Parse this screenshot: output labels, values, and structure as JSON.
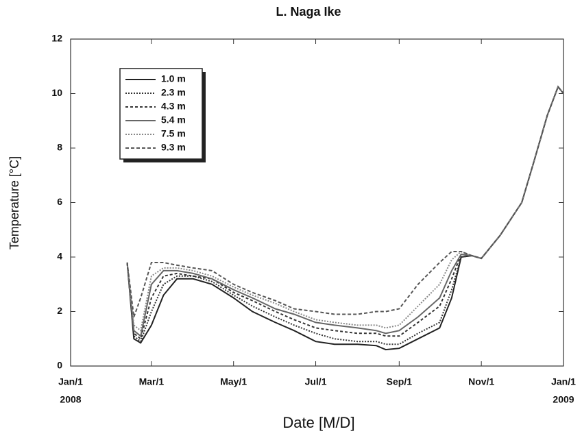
{
  "chart_data": {
    "type": "line",
    "title": "L. Naga Ike",
    "x_label": "Date [M/D]",
    "y_label": "Temperature [°C]",
    "x": [
      "2008-02-12",
      "2008-02-17",
      "2008-02-22",
      "2008-03-01",
      "2008-03-10",
      "2008-03-20",
      "2008-04-01",
      "2008-04-15",
      "2008-05-01",
      "2008-05-15",
      "2008-06-01",
      "2008-06-15",
      "2008-07-01",
      "2008-07-15",
      "2008-08-01",
      "2008-08-15",
      "2008-08-22",
      "2008-09-01",
      "2008-09-15",
      "2008-10-01",
      "2008-10-10",
      "2008-10-17",
      "2008-10-25",
      "2008-11-01",
      "2008-11-15",
      "2008-12-01",
      "2008-12-10",
      "2008-12-20",
      "2008-12-28",
      "2009-01-01"
    ],
    "xlim": [
      "2008-01-01",
      "2009-01-01"
    ],
    "xticks": [
      {
        "value": "2008-01-01",
        "label": "Jan/1"
      },
      {
        "value": "2008-03-01",
        "label": "Mar/1"
      },
      {
        "value": "2008-05-01",
        "label": "May/1"
      },
      {
        "value": "2008-07-01",
        "label": "Jul/1"
      },
      {
        "value": "2008-09-01",
        "label": "Sep/1"
      },
      {
        "value": "2008-11-01",
        "label": "Nov/1"
      },
      {
        "value": "2009-01-01",
        "label": "Jan/1"
      }
    ],
    "x_year_labels": [
      {
        "value": "2008-01-01",
        "label": "2008"
      },
      {
        "value": "2009-01-01",
        "label": "2009"
      }
    ],
    "ylim": [
      0,
      12
    ],
    "yticks": [
      0,
      2,
      4,
      6,
      8,
      10,
      12
    ],
    "legend": "upper left",
    "series": [
      {
        "name": "1.0 m",
        "color": "#222222",
        "dash": "none",
        "values": [
          3.8,
          1.0,
          0.85,
          1.5,
          2.6,
          3.2,
          3.2,
          3.0,
          2.5,
          2.0,
          1.6,
          1.3,
          0.9,
          0.8,
          0.8,
          0.75,
          0.6,
          0.65,
          1.0,
          1.4,
          2.5,
          4.0,
          4.05,
          3.95,
          4.8,
          6.0,
          7.5,
          9.2,
          10.25,
          10.0
        ]
      },
      {
        "name": "2.3 m",
        "color": "#333333",
        "dash": "2 2",
        "values": [
          3.8,
          1.1,
          0.9,
          2.0,
          3.0,
          3.3,
          3.3,
          3.1,
          2.6,
          2.2,
          1.8,
          1.5,
          1.2,
          1.0,
          0.9,
          0.9,
          0.8,
          0.8,
          1.2,
          1.6,
          2.8,
          4.0,
          4.05,
          3.95,
          4.8,
          6.0,
          7.5,
          9.2,
          10.25,
          10.0
        ]
      },
      {
        "name": "4.3 m",
        "color": "#333333",
        "dash": "4 3",
        "values": [
          3.8,
          1.2,
          1.0,
          2.5,
          3.3,
          3.4,
          3.3,
          3.2,
          2.7,
          2.4,
          2.0,
          1.7,
          1.4,
          1.3,
          1.2,
          1.2,
          1.1,
          1.1,
          1.6,
          2.2,
          3.2,
          4.1,
          4.05,
          3.95,
          4.8,
          6.0,
          7.5,
          9.2,
          10.25,
          10.0
        ]
      },
      {
        "name": "5.4 m",
        "color": "#666666",
        "dash": "none",
        "values": [
          3.8,
          1.3,
          1.1,
          3.0,
          3.5,
          3.5,
          3.4,
          3.2,
          2.8,
          2.5,
          2.1,
          1.9,
          1.6,
          1.5,
          1.4,
          1.3,
          1.2,
          1.3,
          1.8,
          2.5,
          3.5,
          4.1,
          4.05,
          3.95,
          4.8,
          6.0,
          7.5,
          9.2,
          10.25,
          10.0
        ]
      },
      {
        "name": "7.5 m",
        "color": "#888888",
        "dash": "2 2",
        "values": [
          3.8,
          1.5,
          1.3,
          3.3,
          3.6,
          3.6,
          3.5,
          3.3,
          2.9,
          2.6,
          2.3,
          2.0,
          1.7,
          1.6,
          1.5,
          1.5,
          1.4,
          1.5,
          2.2,
          3.0,
          3.9,
          4.2,
          4.05,
          3.95,
          4.8,
          6.0,
          7.5,
          9.2,
          10.25,
          10.0
        ]
      },
      {
        "name": "9.3 m",
        "color": "#555555",
        "dash": "5 3",
        "values": [
          3.8,
          1.8,
          2.5,
          3.8,
          3.8,
          3.7,
          3.6,
          3.5,
          3.0,
          2.7,
          2.4,
          2.1,
          2.0,
          1.9,
          1.9,
          2.0,
          2.0,
          2.1,
          3.0,
          3.8,
          4.2,
          4.2,
          4.05,
          3.95,
          4.8,
          6.0,
          7.5,
          9.2,
          10.25,
          10.0
        ]
      }
    ]
  }
}
